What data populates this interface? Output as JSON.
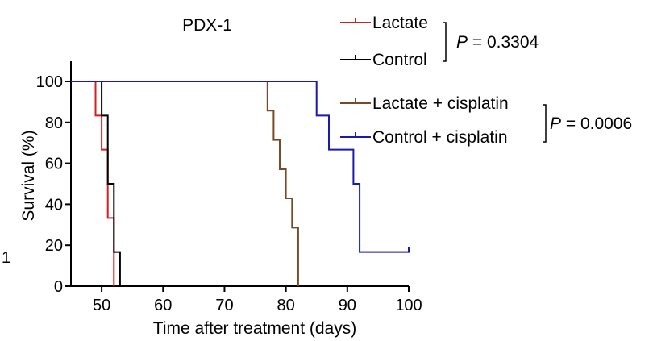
{
  "edge_mark": "1",
  "chart_data": {
    "type": "line",
    "step": true,
    "title": "PDX-1",
    "xlabel": "Time after treatment (days)",
    "ylabel": "Survival (%)",
    "xlim": [
      45,
      100
    ],
    "ylim": [
      0,
      100
    ],
    "xticks": [
      50,
      60,
      70,
      80,
      90,
      100
    ],
    "yticks": [
      0,
      20,
      40,
      60,
      80,
      100
    ],
    "grid": false,
    "legend_placement": "top-right",
    "series": [
      {
        "name": "Lactate",
        "color": "#d42020",
        "points": [
          [
            45,
            100
          ],
          [
            49,
            100
          ],
          [
            49,
            83.3
          ],
          [
            50,
            83.3
          ],
          [
            50,
            66.7
          ],
          [
            51,
            66.7
          ],
          [
            51,
            33.3
          ],
          [
            52,
            33.3
          ],
          [
            52,
            0
          ]
        ]
      },
      {
        "name": "Control",
        "color": "#000000",
        "points": [
          [
            45,
            100
          ],
          [
            50,
            100
          ],
          [
            50,
            83.3
          ],
          [
            51,
            83.3
          ],
          [
            51,
            50
          ],
          [
            52,
            50
          ],
          [
            52,
            16.7
          ],
          [
            53,
            16.7
          ],
          [
            53,
            0
          ]
        ]
      },
      {
        "name": "Lactate + cisplatin",
        "color": "#7a4a25",
        "points": [
          [
            45,
            100
          ],
          [
            77,
            100
          ],
          [
            77,
            85.7
          ],
          [
            78,
            85.7
          ],
          [
            78,
            71.4
          ],
          [
            79,
            71.4
          ],
          [
            79,
            57.1
          ],
          [
            80,
            57.1
          ],
          [
            80,
            42.9
          ],
          [
            81,
            42.9
          ],
          [
            81,
            28.6
          ],
          [
            82,
            28.6
          ],
          [
            82,
            0
          ]
        ]
      },
      {
        "name": "Control + cisplatin",
        "color": "#1a1ab0",
        "points": [
          [
            45,
            100
          ],
          [
            85,
            100
          ],
          [
            85,
            83.3
          ],
          [
            87,
            83.3
          ],
          [
            87,
            66.7
          ],
          [
            91,
            66.7
          ],
          [
            91,
            50
          ],
          [
            92,
            50
          ],
          [
            92,
            16.7
          ],
          [
            100,
            16.7
          ]
        ],
        "censored": [
          [
            100,
            16.7
          ]
        ]
      }
    ],
    "comparisons": [
      {
        "groups": [
          "Lactate",
          "Control"
        ],
        "label": "P = 0.3304",
        "italic_prefix": "P",
        "rest": " = 0.3304"
      },
      {
        "groups": [
          "Lactate + cisplatin",
          "Control + cisplatin"
        ],
        "label": "P = 0.0006",
        "italic_prefix": "P",
        "rest": " = 0.0006"
      }
    ]
  }
}
